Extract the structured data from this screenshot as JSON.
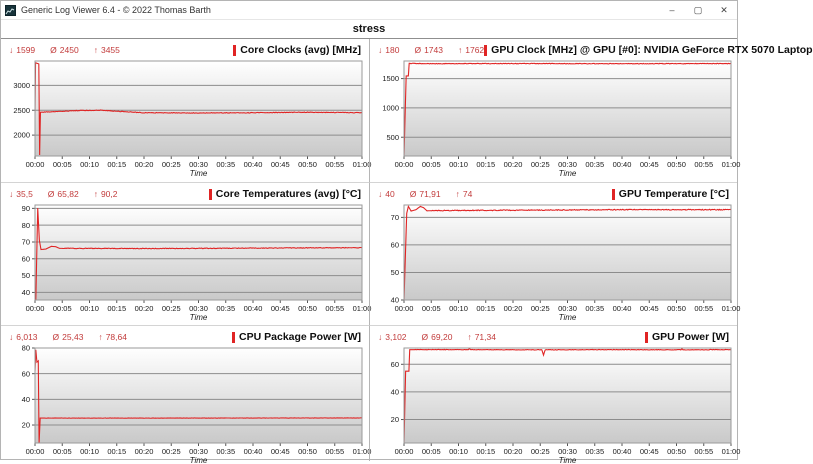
{
  "window": {
    "title": "Generic Log Viewer 6.4 - © 2022 Thomas Barth",
    "controls": {
      "minimize": "–",
      "maximize": "▢",
      "close": "✕"
    }
  },
  "page_title": "stress",
  "glyphs": {
    "min": "↓",
    "avg": "Ø",
    "max": "↑"
  },
  "colors": {
    "line_red": "#e02424",
    "stat_red": "#c23b3b",
    "grid_line": "#8c8c8c",
    "plot_border": "#9a9a9a",
    "plot_bg_top": "#ffffff",
    "plot_bg_bottom": "#c9c9c9"
  },
  "time_axis": {
    "label": "Time",
    "ticks": [
      "00:00",
      "00:05",
      "00:10",
      "00:15",
      "00:20",
      "00:25",
      "00:30",
      "00:35",
      "00:40",
      "00:45",
      "00:50",
      "00:55",
      "01:00"
    ]
  },
  "chart_data": [
    {
      "type": "line",
      "title": "Core Clocks (avg) [MHz]",
      "stats": {
        "min": "1599",
        "avg": "2450",
        "max": "3455"
      },
      "xlabel": "Time",
      "xlim": [
        0,
        60
      ],
      "ylim": [
        1580,
        3490
      ],
      "y_ticks": [
        2000,
        2500,
        3000
      ],
      "points": [
        [
          0,
          2450
        ],
        [
          0.1,
          3455
        ],
        [
          0.7,
          3430
        ],
        [
          0.85,
          1599
        ],
        [
          1.0,
          2460
        ],
        [
          8,
          2495
        ],
        [
          12,
          2500
        ],
        [
          15,
          2480
        ],
        [
          20,
          2450
        ],
        [
          30,
          2445
        ],
        [
          40,
          2450
        ],
        [
          50,
          2460
        ],
        [
          60,
          2450
        ]
      ],
      "noise": 12,
      "noise_from": 1.5
    },
    {
      "type": "line",
      "title": "GPU Clock [MHz] @ GPU [#0]: NVIDIA GeForce RTX 5070 Laptop",
      "stats": {
        "min": "180",
        "avg": "1743",
        "max": "1762"
      },
      "xlabel": "Time",
      "xlim": [
        0,
        60
      ],
      "ylim": [
        180,
        1800
      ],
      "y_ticks": [
        500,
        1000,
        1500
      ],
      "points": [
        [
          0,
          180
        ],
        [
          0.4,
          1545
        ],
        [
          0.8,
          1545
        ],
        [
          0.95,
          1760
        ],
        [
          5,
          1755
        ],
        [
          20,
          1756
        ],
        [
          40,
          1754
        ],
        [
          60,
          1756
        ]
      ],
      "noise": 10,
      "noise_from": 1.2
    },
    {
      "type": "line",
      "title": "Core Temperatures (avg) [°C]",
      "stats": {
        "min": "35,5",
        "avg": "65,82",
        "max": "90,2"
      },
      "xlabel": "Time",
      "xlim": [
        0,
        60
      ],
      "ylim": [
        35.5,
        92
      ],
      "y_ticks": [
        40,
        50,
        60,
        70,
        80,
        90
      ],
      "points": [
        [
          0,
          37
        ],
        [
          0.15,
          35.5
        ],
        [
          0.5,
          90.2
        ],
        [
          0.8,
          71
        ],
        [
          1.1,
          65.5
        ],
        [
          2,
          65.8
        ],
        [
          3,
          67.4
        ],
        [
          3.8,
          67.2
        ],
        [
          4.5,
          66.2
        ],
        [
          10,
          66.2
        ],
        [
          20,
          66.1
        ],
        [
          30,
          66.2
        ],
        [
          43,
          66.4
        ],
        [
          50,
          66.5
        ],
        [
          60,
          66.6
        ]
      ],
      "noise": 0.35,
      "noise_from": 5
    },
    {
      "type": "line",
      "title": "GPU Temperature [°C]",
      "stats": {
        "min": "40",
        "avg": "71,91",
        "max": "74"
      },
      "xlabel": "Time",
      "xlim": [
        0,
        60
      ],
      "ylim": [
        40,
        74.5
      ],
      "y_ticks": [
        40,
        50,
        60,
        70
      ],
      "points": [
        [
          0,
          40
        ],
        [
          0.5,
          71.5
        ],
        [
          0.8,
          74
        ],
        [
          1.3,
          72.3
        ],
        [
          2.2,
          72.8
        ],
        [
          3.0,
          74
        ],
        [
          3.6,
          73.5
        ],
        [
          4.2,
          72.4
        ],
        [
          8,
          72.5
        ],
        [
          20,
          72.6
        ],
        [
          40,
          72.8
        ],
        [
          60,
          72.8
        ]
      ],
      "noise": 0.3,
      "noise_from": 5
    },
    {
      "type": "line",
      "title": "CPU Package Power [W]",
      "stats": {
        "min": "6,013",
        "avg": "25,43",
        "max": "78,64"
      },
      "xlabel": "Time",
      "xlim": [
        0,
        60
      ],
      "ylim": [
        6,
        80
      ],
      "y_ticks": [
        20,
        40,
        60,
        80
      ],
      "points": [
        [
          0,
          62
        ],
        [
          0.15,
          78.64
        ],
        [
          0.35,
          69
        ],
        [
          0.6,
          70
        ],
        [
          0.75,
          6.013
        ],
        [
          0.95,
          25.4
        ],
        [
          20,
          25.4
        ],
        [
          40,
          25.45
        ],
        [
          60,
          25.5
        ]
      ],
      "noise": 0.25,
      "noise_from": 2
    },
    {
      "type": "line",
      "title": "GPU Power [W]",
      "stats": {
        "min": "3,102",
        "avg": "69,20",
        "max": "71,34"
      },
      "xlabel": "Time",
      "xlim": [
        0,
        60
      ],
      "ylim": [
        3,
        71.8
      ],
      "y_ticks": [
        20,
        40,
        60
      ],
      "points": [
        [
          0,
          3.102
        ],
        [
          0.3,
          55
        ],
        [
          0.9,
          55
        ],
        [
          1.05,
          70.6
        ],
        [
          11.8,
          70.6
        ],
        [
          12,
          71.34
        ],
        [
          12.2,
          70.6
        ],
        [
          25.3,
          70.5
        ],
        [
          25.6,
          66.5
        ],
        [
          25.9,
          70.5
        ],
        [
          38,
          70.6
        ],
        [
          50.8,
          70.5
        ],
        [
          51,
          71.3
        ],
        [
          51.2,
          70.5
        ],
        [
          60,
          70.6
        ]
      ],
      "noise": 0.35,
      "noise_from": 2
    }
  ]
}
